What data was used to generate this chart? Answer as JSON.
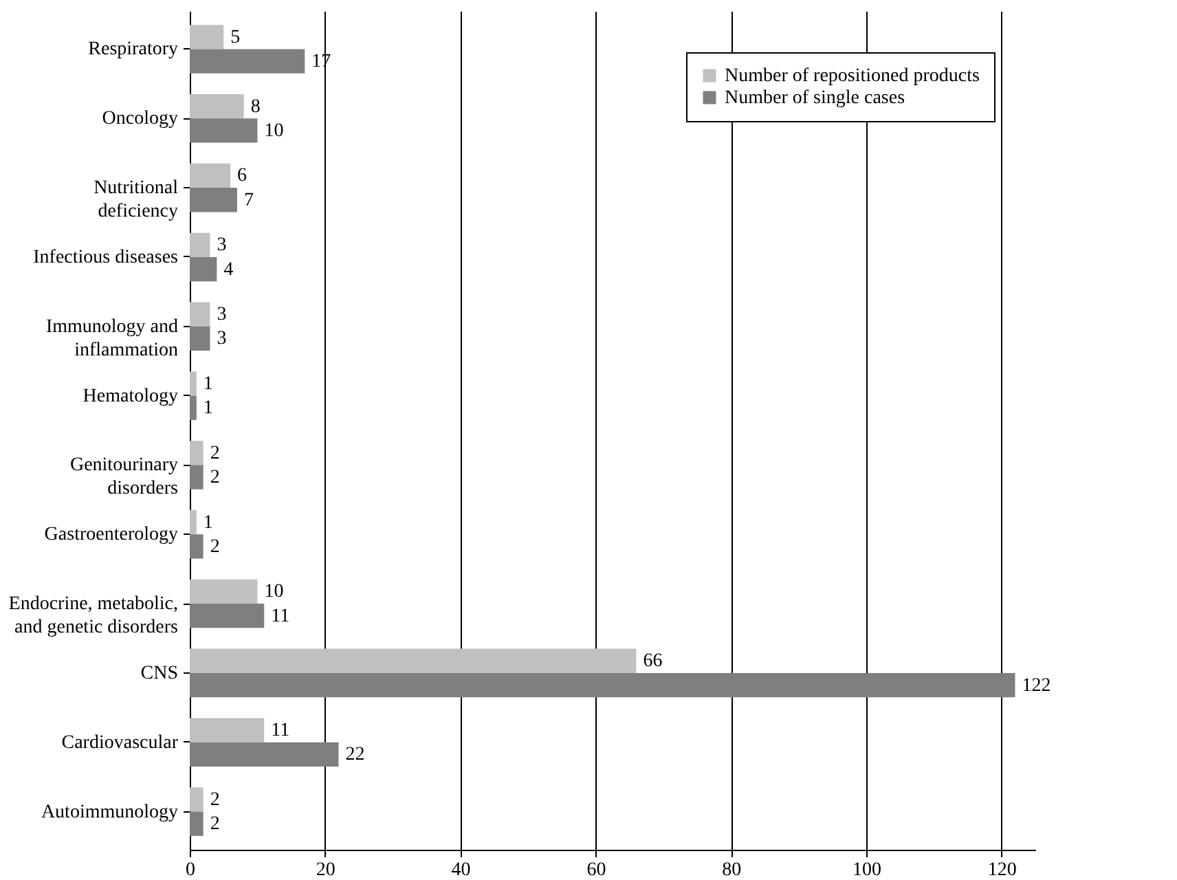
{
  "chart_data": {
    "type": "bar",
    "orientation": "horizontal",
    "categories": [
      "Respiratory",
      "Oncology",
      "Nutritional deficiency",
      "Infectious diseases",
      "Immunology and inflammation",
      "Hematology",
      "Genitourinary disorders",
      "Gastroenterology",
      "Endocrine, metabolic, and genetic disorders",
      "CNS",
      "Cardiovascular",
      "Autoimmunology"
    ],
    "series": [
      {
        "name": "Number of repositioned products",
        "color": "#c0c0c0",
        "values": [
          5,
          8,
          6,
          3,
          3,
          1,
          2,
          1,
          10,
          66,
          11,
          2
        ]
      },
      {
        "name": "Number of single cases",
        "color": "#7f7f7f",
        "values": [
          17,
          10,
          7,
          4,
          3,
          1,
          2,
          2,
          11,
          122,
          22,
          2
        ]
      }
    ],
    "xlim": [
      0,
      125
    ],
    "xticks": [
      0,
      20,
      40,
      60,
      80,
      100,
      120
    ],
    "grid": "x",
    "legend": "top right",
    "data_labels": true
  }
}
